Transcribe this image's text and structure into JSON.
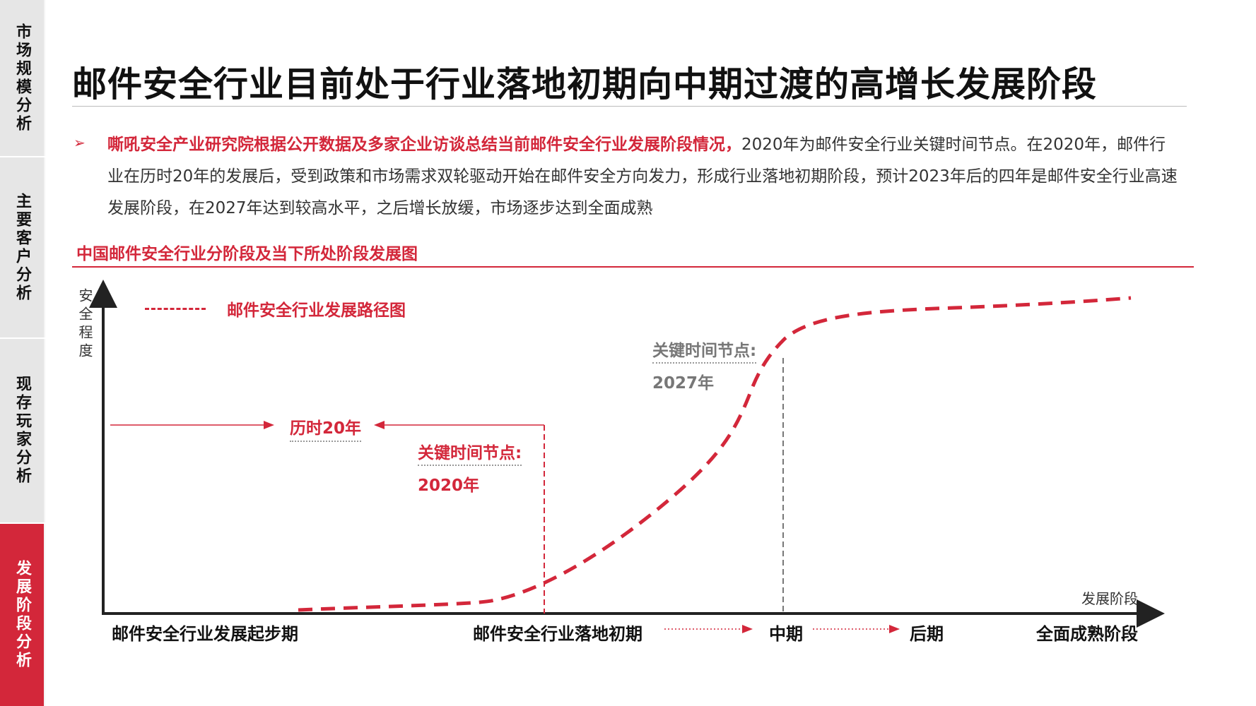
{
  "sidebar": {
    "tabs": [
      {
        "label": "市场规模分析",
        "active": false
      },
      {
        "label": "主要客户分析",
        "active": false
      },
      {
        "label": "现存玩家分析",
        "active": false
      },
      {
        "label": "发展阶段分析",
        "active": true
      }
    ]
  },
  "page": {
    "title": "邮件安全行业目前处于行业落地初期向中期过渡的高增长发展阶段",
    "paragraph_lead": "嘶吼安全产业研究院根据公开数据及多家企业访谈总结当前邮件安全行业发展阶段情况，",
    "paragraph_body": "2020年为邮件安全行业关键时间节点。在2020年，邮件行业在历时20年的发展后，受到政策和市场需求双轮驱动开始在邮件安全方向发力，形成行业落地初期阶段，预计2023年后的四年是邮件安全行业高速发展阶段，在2027年达到较高水平，之后增长放缓，市场逐步达到全面成熟"
  },
  "diagram": {
    "subtitle": "中国邮件安全行业分阶段及当下所处阶段发展图",
    "y_axis_label": "安全程度",
    "x_axis_label": "发展阶段",
    "legend_label": "邮件安全行业发展路径图",
    "span_label": "历时20年",
    "key_point_label": "关键时间节点:",
    "key_point_2020": "2020年",
    "key_point_2027": "2027年",
    "stages": [
      "邮件安全行业发展起步期",
      "邮件安全行业落地初期",
      "中期",
      "后期",
      "全面成熟阶段"
    ],
    "accent_color": "#d3273a"
  }
}
